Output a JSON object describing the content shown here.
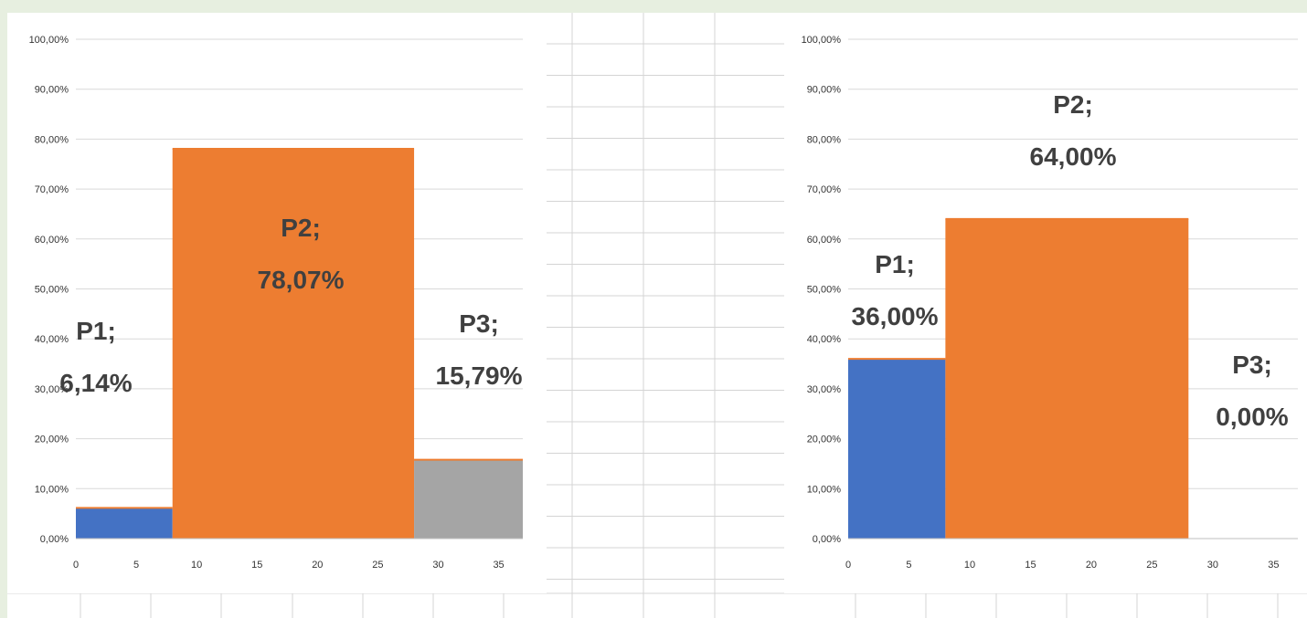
{
  "colors": {
    "p1": "#4472C4",
    "p2": "#ED7D31",
    "p3": "#A5A5A5",
    "gridline": "#d9d9d9",
    "sheet_border": "#e7efe0",
    "sheet_gridline": "#d4d4d4",
    "label": "#404040"
  },
  "chart_data": [
    {
      "type": "bar",
      "title": "",
      "xlabel": "",
      "ylabel": "",
      "xlim": [
        0,
        37
      ],
      "ylim": [
        0,
        100
      ],
      "x_ticks": [
        0,
        5,
        10,
        15,
        20,
        25,
        30,
        35
      ],
      "y_ticks": [
        "0,00%",
        "10,00%",
        "20,00%",
        "30,00%",
        "40,00%",
        "50,00%",
        "60,00%",
        "70,00%",
        "80,00%",
        "90,00%",
        "100,00%"
      ],
      "grid": true,
      "legend": "none",
      "bars": [
        {
          "name": "P1",
          "x_start": 0,
          "x_end": 8,
          "value": 6.14,
          "label_name": "P1;",
          "label_value": "6,14%"
        },
        {
          "name": "P2",
          "x_start": 8,
          "x_end": 28,
          "value": 78.07,
          "label_name": "P2;",
          "label_value": "78,07%"
        },
        {
          "name": "P3",
          "x_start": 28,
          "x_end": 37,
          "value": 15.79,
          "label_name": "P3;",
          "label_value": "15,79%"
        }
      ]
    },
    {
      "type": "bar",
      "title": "",
      "xlabel": "",
      "ylabel": "",
      "xlim": [
        0,
        37
      ],
      "ylim": [
        0,
        100
      ],
      "x_ticks": [
        0,
        5,
        10,
        15,
        20,
        25,
        30,
        35
      ],
      "y_ticks": [
        "0,00%",
        "10,00%",
        "20,00%",
        "30,00%",
        "40,00%",
        "50,00%",
        "60,00%",
        "70,00%",
        "80,00%",
        "90,00%",
        "100,00%"
      ],
      "grid": true,
      "legend": "none",
      "bars": [
        {
          "name": "P1",
          "x_start": 0,
          "x_end": 8,
          "value": 36.0,
          "label_name": "P1;",
          "label_value": "36,00%"
        },
        {
          "name": "P2",
          "x_start": 8,
          "x_end": 28,
          "value": 64.0,
          "label_name": "P2;",
          "label_value": "64,00%"
        },
        {
          "name": "P3",
          "x_start": 28,
          "x_end": 37,
          "value": 0.0,
          "label_name": "P3;",
          "label_value": "0,00%"
        }
      ]
    }
  ]
}
